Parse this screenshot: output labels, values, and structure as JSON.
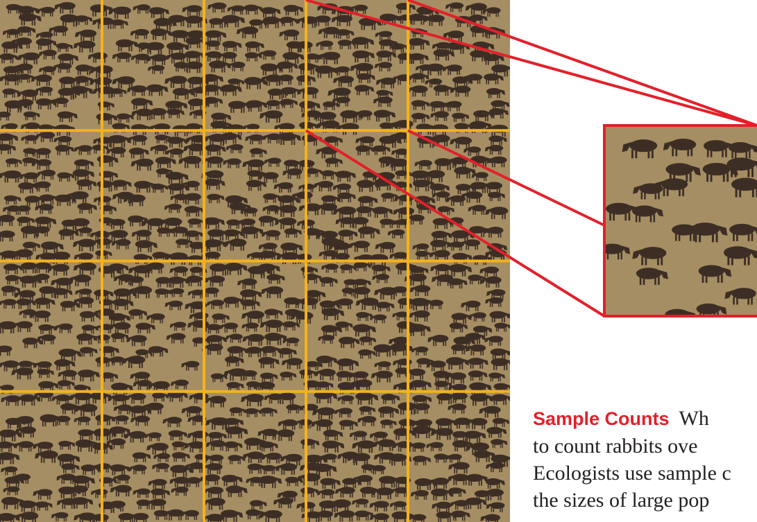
{
  "figure": {
    "subject": "aerial photograph of a dense wildebeest herd on a grassy plain, divided into a 5 by 4 sampling grid, with one grid square enlarged",
    "grid": {
      "columns": 5,
      "rows": 4
    },
    "highlighted_cell": {
      "column": 4,
      "row": 1
    },
    "colors": {
      "grid_line": "#f5b21b",
      "callout": "#e3202a",
      "ground": "#a58e63",
      "animal": "#3d2e25"
    }
  },
  "caption": {
    "lead": "Sample Counts",
    "lines": [
      "Wh",
      "to  count  rabbits  ove",
      "Ecologists use sample c",
      "the sizes of large pop"
    ]
  }
}
